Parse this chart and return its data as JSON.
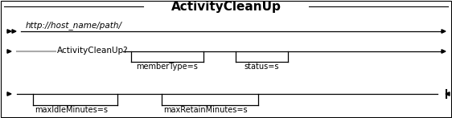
{
  "title": "ActivityCleanUp",
  "title_fontsize": 11,
  "title_fontweight": "bold",
  "bg_color": "#ffffff",
  "border_color": "#000000",
  "gray_color": "#aaaaaa",
  "row1_text": "http://host_name/path/",
  "row2_text": "ActivityCleanUp?",
  "row2_params": [
    "memberType=s",
    "status=s"
  ],
  "row3_params": [
    "maxIdleMinutes=s",
    "maxRetainMinutes=s"
  ],
  "figsize": [
    5.62,
    1.47
  ],
  "dpi": 100
}
